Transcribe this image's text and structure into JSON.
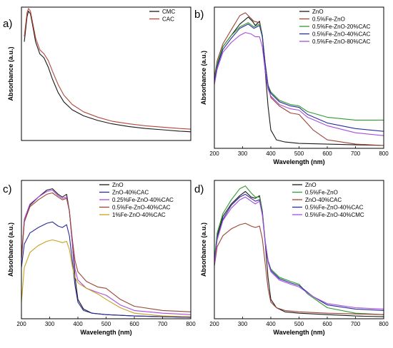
{
  "chart_data": [
    {
      "type": "line",
      "panel_label": "a)",
      "xlabel": "",
      "ylabel": "Absorbance (a.u.)",
      "xlim": [
        200,
        800
      ],
      "xticks": [],
      "show_y_ticks": false,
      "legend": "top-right",
      "series": [
        {
          "name": "CMC",
          "color": "#1a1a1a",
          "x": [
            210,
            220,
            225,
            232,
            240,
            250,
            265,
            280,
            295,
            310,
            330,
            350,
            380,
            420,
            470,
            520,
            580,
            640,
            700,
            760,
            800
          ],
          "y": [
            0.74,
            0.93,
            0.97,
            0.95,
            0.86,
            0.74,
            0.65,
            0.62,
            0.55,
            0.46,
            0.36,
            0.29,
            0.23,
            0.185,
            0.15,
            0.125,
            0.105,
            0.09,
            0.08,
            0.07,
            0.065
          ]
        },
        {
          "name": "CAC",
          "color": "#b5473a",
          "x": [
            210,
            220,
            225,
            232,
            240,
            250,
            265,
            280,
            295,
            310,
            330,
            350,
            380,
            420,
            470,
            520,
            580,
            640,
            700,
            760,
            800
          ],
          "y": [
            0.78,
            0.96,
            0.99,
            0.97,
            0.88,
            0.77,
            0.68,
            0.65,
            0.6,
            0.52,
            0.42,
            0.34,
            0.27,
            0.215,
            0.175,
            0.145,
            0.125,
            0.11,
            0.1,
            0.09,
            0.085
          ]
        }
      ]
    },
    {
      "type": "line",
      "panel_label": "b)",
      "xlabel": "Wavelength (nm)",
      "ylabel": "Absorbance (a.u.)",
      "xlim": [
        200,
        800
      ],
      "xticks": [
        200,
        300,
        400,
        500,
        600,
        700,
        800
      ],
      "show_y_ticks": false,
      "legend": "top-right",
      "series": [
        {
          "name": "ZnO",
          "color": "#1a1a1a",
          "x": [
            200,
            210,
            230,
            260,
            290,
            320,
            335,
            345,
            360,
            370,
            380,
            390,
            400,
            420,
            450,
            500,
            600,
            700,
            800
          ],
          "y": [
            0.48,
            0.58,
            0.72,
            0.8,
            0.88,
            0.93,
            0.9,
            0.87,
            0.9,
            0.8,
            0.55,
            0.3,
            0.13,
            0.06,
            0.045,
            0.035,
            0.03,
            0.025,
            0.02
          ]
        },
        {
          "name": "0.5%Fe-ZnO",
          "color": "#9b4535",
          "x": [
            200,
            210,
            230,
            260,
            290,
            310,
            325,
            340,
            360,
            370,
            380,
            390,
            400,
            430,
            470,
            500,
            550,
            600,
            700,
            800
          ],
          "y": [
            0.5,
            0.62,
            0.74,
            0.84,
            0.94,
            0.96,
            0.93,
            0.9,
            0.89,
            0.8,
            0.6,
            0.45,
            0.36,
            0.3,
            0.25,
            0.24,
            0.13,
            0.06,
            0.03,
            0.02
          ]
        },
        {
          "name": "0.5%Fe-ZnO-20%CAC",
          "color": "#2e9b2e",
          "x": [
            200,
            210,
            230,
            260,
            290,
            320,
            340,
            360,
            370,
            380,
            390,
            400,
            430,
            470,
            500,
            530,
            600,
            700,
            800
          ],
          "y": [
            0.49,
            0.6,
            0.72,
            0.8,
            0.86,
            0.89,
            0.86,
            0.88,
            0.8,
            0.6,
            0.45,
            0.4,
            0.34,
            0.31,
            0.3,
            0.26,
            0.22,
            0.2,
            0.2
          ]
        },
        {
          "name": "0.5%Fe-ZnO-40%CAC",
          "color": "#2b2c9b",
          "x": [
            200,
            210,
            230,
            260,
            290,
            320,
            340,
            360,
            370,
            380,
            390,
            400,
            430,
            470,
            500,
            530,
            600,
            700,
            800
          ],
          "y": [
            0.47,
            0.58,
            0.7,
            0.78,
            0.85,
            0.88,
            0.85,
            0.87,
            0.79,
            0.6,
            0.44,
            0.39,
            0.33,
            0.3,
            0.29,
            0.24,
            0.18,
            0.14,
            0.12
          ]
        },
        {
          "name": "0.5%Fe-ZnO-80%CAC",
          "color": "#a64de0",
          "x": [
            200,
            210,
            230,
            260,
            290,
            310,
            330,
            345,
            360,
            370,
            380,
            390,
            400,
            430,
            470,
            500,
            530,
            600,
            700,
            800
          ],
          "y": [
            0.45,
            0.56,
            0.68,
            0.75,
            0.8,
            0.82,
            0.81,
            0.79,
            0.79,
            0.72,
            0.55,
            0.42,
            0.37,
            0.31,
            0.28,
            0.27,
            0.22,
            0.16,
            0.11,
            0.09
          ]
        }
      ]
    },
    {
      "type": "line",
      "panel_label": "c)",
      "xlabel": "Wavelength (nm)",
      "ylabel": "Absorbance (a.u.)",
      "xlim": [
        200,
        800
      ],
      "xticks": [
        200,
        300,
        400,
        500,
        600,
        700,
        800
      ],
      "show_y_ticks": false,
      "legend": "top-right",
      "series": [
        {
          "name": "ZnO",
          "color": "#1a1a1a",
          "x": [
            200,
            210,
            230,
            260,
            290,
            310,
            330,
            345,
            360,
            370,
            380,
            390,
            400,
            420,
            450,
            500,
            600,
            700,
            800
          ],
          "y": [
            0.44,
            0.7,
            0.82,
            0.88,
            0.93,
            0.94,
            0.9,
            0.88,
            0.9,
            0.78,
            0.55,
            0.3,
            0.14,
            0.07,
            0.04,
            0.03,
            0.02,
            0.015,
            0.01
          ]
        },
        {
          "name": "ZnO-40%CAC",
          "color": "#2b2c9b",
          "x": [
            200,
            210,
            230,
            260,
            290,
            310,
            330,
            345,
            360,
            370,
            380,
            390,
            400,
            420,
            450,
            500,
            600,
            700,
            800
          ],
          "y": [
            0.37,
            0.54,
            0.62,
            0.66,
            0.69,
            0.7,
            0.67,
            0.66,
            0.68,
            0.6,
            0.42,
            0.24,
            0.12,
            0.06,
            0.04,
            0.03,
            0.02,
            0.015,
            0.01
          ]
        },
        {
          "name": "0.25%Fe-ZnO-40%CAC",
          "color": "#a64de0",
          "x": [
            200,
            210,
            230,
            260,
            290,
            310,
            330,
            345,
            360,
            370,
            380,
            390,
            400,
            430,
            470,
            500,
            550,
            600,
            700,
            800
          ],
          "y": [
            0.44,
            0.72,
            0.83,
            0.88,
            0.92,
            0.93,
            0.89,
            0.87,
            0.88,
            0.78,
            0.55,
            0.36,
            0.28,
            0.22,
            0.19,
            0.17,
            0.1,
            0.06,
            0.04,
            0.03
          ]
        },
        {
          "name": "0.5%Fe-ZnO-40%CAC",
          "color": "#9b4535",
          "x": [
            200,
            210,
            230,
            260,
            290,
            310,
            330,
            345,
            360,
            370,
            380,
            390,
            400,
            430,
            470,
            500,
            550,
            600,
            700,
            800
          ],
          "y": [
            0.43,
            0.7,
            0.81,
            0.86,
            0.9,
            0.91,
            0.88,
            0.86,
            0.87,
            0.78,
            0.58,
            0.42,
            0.34,
            0.27,
            0.23,
            0.22,
            0.14,
            0.09,
            0.06,
            0.05
          ]
        },
        {
          "name": "1%Fe-ZnO-40%CAC",
          "color": "#c8a21e",
          "x": [
            200,
            210,
            230,
            260,
            290,
            310,
            330,
            345,
            360,
            370,
            380,
            390,
            400,
            430,
            470,
            500,
            550,
            600,
            700,
            800
          ],
          "y": [
            0.12,
            0.37,
            0.48,
            0.53,
            0.56,
            0.57,
            0.56,
            0.55,
            0.56,
            0.5,
            0.38,
            0.3,
            0.26,
            0.22,
            0.18,
            0.14,
            0.08,
            0.04,
            0.02,
            0.015
          ]
        }
      ]
    },
    {
      "type": "line",
      "panel_label": "d)",
      "xlabel": "Wavelength (nm)",
      "ylabel": "Absorbance (a.u.)",
      "xlim": [
        200,
        800
      ],
      "xticks": [
        200,
        300,
        400,
        500,
        600,
        700,
        800
      ],
      "show_y_ticks": false,
      "legend": "top-right",
      "series": [
        {
          "name": "ZnO",
          "color": "#1a1a1a",
          "x": [
            200,
            210,
            230,
            260,
            290,
            310,
            330,
            345,
            360,
            370,
            380,
            390,
            400,
            420,
            450,
            500,
            600,
            700,
            800
          ],
          "y": [
            0.42,
            0.6,
            0.74,
            0.83,
            0.89,
            0.92,
            0.88,
            0.87,
            0.89,
            0.78,
            0.55,
            0.3,
            0.14,
            0.08,
            0.05,
            0.04,
            0.03,
            0.02,
            0.015
          ]
        },
        {
          "name": "0.5%Fe-ZnO",
          "color": "#2e9b2e",
          "x": [
            200,
            210,
            230,
            260,
            290,
            310,
            330,
            345,
            360,
            370,
            380,
            390,
            400,
            430,
            470,
            500,
            530,
            600,
            700,
            800
          ],
          "y": [
            0.43,
            0.62,
            0.76,
            0.86,
            0.94,
            0.96,
            0.91,
            0.88,
            0.88,
            0.78,
            0.56,
            0.42,
            0.36,
            0.3,
            0.27,
            0.25,
            0.18,
            0.08,
            0.04,
            0.03
          ]
        },
        {
          "name": "ZnO-40%CAC",
          "color": "#9b4535",
          "x": [
            200,
            210,
            230,
            260,
            290,
            310,
            330,
            345,
            360,
            370,
            380,
            390,
            400,
            420,
            450,
            500,
            600,
            700,
            800
          ],
          "y": [
            0.38,
            0.52,
            0.6,
            0.65,
            0.68,
            0.69,
            0.67,
            0.66,
            0.67,
            0.58,
            0.4,
            0.22,
            0.12,
            0.08,
            0.06,
            0.05,
            0.04,
            0.035,
            0.03
          ]
        },
        {
          "name": "0.5%Fe-ZnO-40%CAC",
          "color": "#2b2c9b",
          "x": [
            200,
            210,
            230,
            260,
            290,
            310,
            330,
            345,
            360,
            370,
            380,
            390,
            400,
            430,
            470,
            500,
            550,
            600,
            700,
            800
          ],
          "y": [
            0.4,
            0.58,
            0.72,
            0.82,
            0.88,
            0.9,
            0.87,
            0.85,
            0.86,
            0.76,
            0.56,
            0.42,
            0.35,
            0.29,
            0.26,
            0.24,
            0.16,
            0.1,
            0.07,
            0.06
          ]
        },
        {
          "name": "0.5%Fe-ZnO-40%CMC",
          "color": "#a64de0",
          "x": [
            200,
            210,
            230,
            260,
            290,
            310,
            330,
            345,
            360,
            370,
            380,
            390,
            400,
            430,
            470,
            500,
            550,
            600,
            700,
            800
          ],
          "y": [
            0.39,
            0.57,
            0.71,
            0.8,
            0.86,
            0.88,
            0.85,
            0.83,
            0.85,
            0.75,
            0.55,
            0.41,
            0.34,
            0.28,
            0.25,
            0.23,
            0.16,
            0.11,
            0.08,
            0.07
          ]
        }
      ]
    }
  ]
}
